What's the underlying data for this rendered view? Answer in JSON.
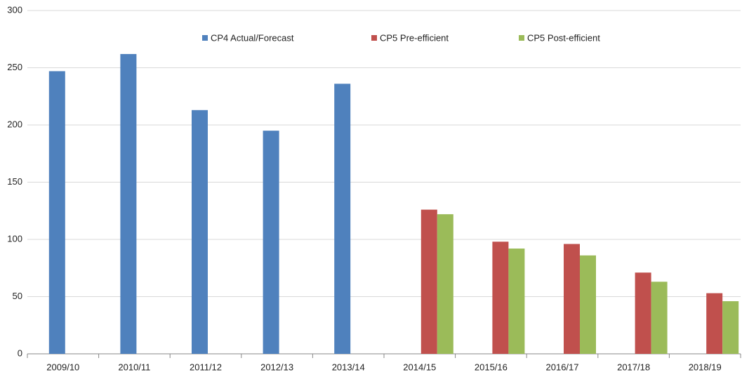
{
  "chart_data": {
    "type": "bar",
    "categories": [
      "2009/10",
      "2010/11",
      "2011/12",
      "2012/13",
      "2013/14",
      "2014/15",
      "2015/16",
      "2016/17",
      "2017/18",
      "2018/19"
    ],
    "series": [
      {
        "name": "CP4 Actual/Forecast",
        "color": "#4f81bd",
        "values": [
          247,
          262,
          213,
          195,
          236,
          null,
          null,
          null,
          null,
          null
        ]
      },
      {
        "name": "CP5 Pre-efficient",
        "color": "#c0504d",
        "values": [
          null,
          null,
          null,
          null,
          null,
          126,
          98,
          96,
          71,
          53
        ]
      },
      {
        "name": "CP5 Post-efficient",
        "color": "#9bbb59",
        "values": [
          null,
          null,
          null,
          null,
          null,
          122,
          92,
          86,
          63,
          46
        ]
      }
    ],
    "ylim": [
      0,
      300
    ],
    "yticks": [
      0,
      50,
      100,
      150,
      200,
      250,
      300
    ],
    "grid": true,
    "legend": "top"
  }
}
